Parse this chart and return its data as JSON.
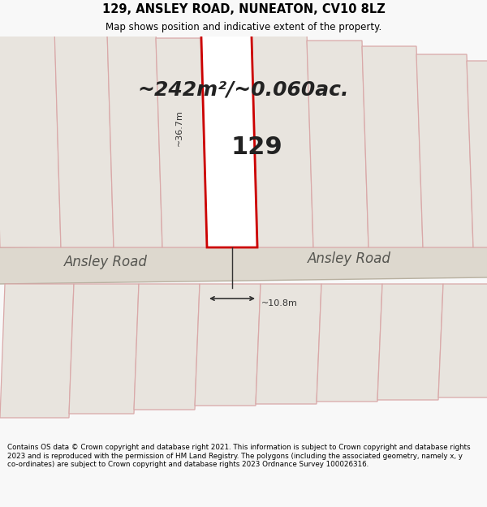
{
  "title_line1": "129, ANSLEY ROAD, NUNEATON, CV10 8LZ",
  "title_line2": "Map shows position and indicative extent of the property.",
  "area_text": "~242m²/~0.060ac.",
  "property_label": "129",
  "dim_height": "~36.7m",
  "dim_width": "~10.8m",
  "road_label1": "Ansley Road",
  "road_label2": "Ansley Road",
  "footer_text": "Contains OS data © Crown copyright and database right 2021. This information is subject to Crown copyright and database rights 2023 and is reproduced with the permission of HM Land Registry. The polygons (including the associated geometry, namely x, y co-ordinates) are subject to Crown copyright and database rights 2023 Ordnance Survey 100026316.",
  "bg_color": "#f8f8f8",
  "map_bg": "#edeae4",
  "plot_fill": "#e8e4de",
  "plot_edge": "#d9a8a8",
  "highlight_fill": "#ffffff",
  "highlight_edge": "#cc0000",
  "road_fill": "#ddd8ce",
  "road_edge": "#b8b0a0",
  "title_bg": "#ffffff",
  "footer_bg": "#ffffff",
  "dim_color": "#333333",
  "label_color": "#555550",
  "text_color": "#222222"
}
